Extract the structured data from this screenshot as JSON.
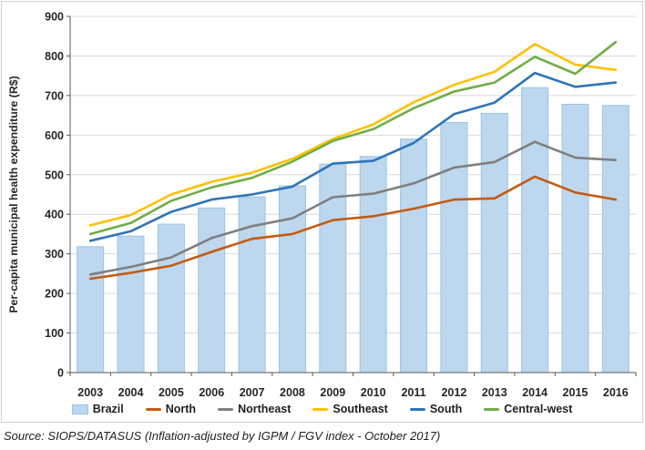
{
  "figure": {
    "y_axis_title": "Per-capita municipal health expenditure (R$)",
    "source": "Source: SIOPS/DATASUS (Inflation-adjusted by IGPM / FGV index - October 2017)"
  },
  "colors": {
    "bar_fill": "#BDD7EE",
    "bar_border": "#9DC3E6",
    "north": "#C55A11",
    "northeast": "#7F7F7F",
    "southeast": "#FFC000",
    "south": "#2E75B6",
    "central_west": "#70AD47",
    "gridline": "#D9D9D9",
    "axis": "#595959",
    "text": "#262626"
  },
  "chart_data": {
    "type": "combo-bar-line",
    "title": "",
    "xlabel": "",
    "ylabel": "Per-capita municipal health expenditure (R$)",
    "ylim": [
      0,
      900
    ],
    "ytick_step": 100,
    "grid": true,
    "legend_position": "bottom",
    "categories": [
      "2003",
      "2004",
      "2005",
      "2006",
      "2007",
      "2008",
      "2009",
      "2010",
      "2011",
      "2012",
      "2013",
      "2014",
      "2015",
      "2016"
    ],
    "bar_series": {
      "name": "Brazil",
      "values": [
        318,
        345,
        375,
        416,
        444,
        472,
        527,
        546,
        590,
        632,
        655,
        720,
        678,
        675
      ]
    },
    "line_series": [
      {
        "name": "North",
        "color_key": "north",
        "values": [
          237,
          252,
          270,
          305,
          338,
          350,
          385,
          395,
          414,
          437,
          440,
          495,
          455,
          437
        ]
      },
      {
        "name": "Northeast",
        "color_key": "northeast",
        "values": [
          248,
          267,
          291,
          340,
          370,
          390,
          443,
          452,
          478,
          518,
          532,
          583,
          543,
          537
        ]
      },
      {
        "name": "Southeast",
        "color_key": "southeast",
        "values": [
          372,
          398,
          450,
          482,
          505,
          540,
          590,
          627,
          683,
          727,
          760,
          830,
          778,
          765
        ]
      },
      {
        "name": "South",
        "color_key": "south",
        "values": [
          333,
          357,
          406,
          437,
          450,
          470,
          528,
          535,
          580,
          653,
          682,
          757,
          722,
          733
        ]
      },
      {
        "name": "Central-west",
        "color_key": "central_west",
        "values": [
          350,
          378,
          434,
          468,
          492,
          533,
          585,
          615,
          668,
          710,
          733,
          798,
          755,
          835
        ]
      }
    ],
    "legend": [
      "Brazil",
      "North",
      "Northeast",
      "Southeast",
      "South",
      "Central-west"
    ]
  }
}
